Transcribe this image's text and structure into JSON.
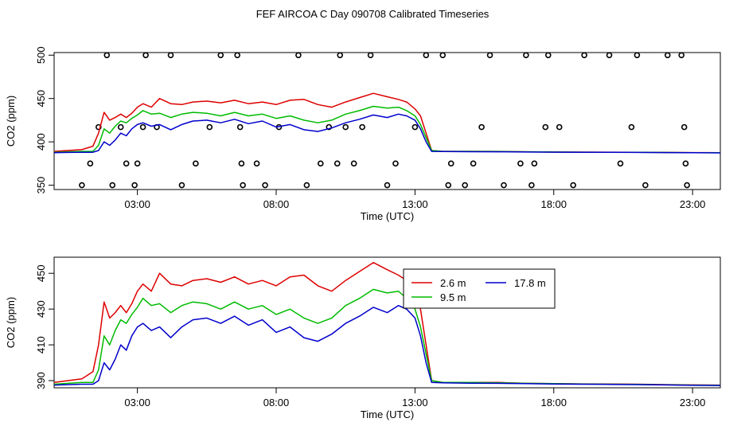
{
  "title": "FEF AIRCOA C  Day 090708  Calibrated Timeseries",
  "colors": {
    "2.6 m": "#dd0000",
    "9.5 m": "#00bb00",
    "17.8 m": "#0000cc",
    "frame": "#000000"
  },
  "chart_data": [
    {
      "type": "line",
      "xlabel": "Time (UTC)",
      "ylabel": "CO2 (ppm)",
      "x_unit": "hours UTC",
      "xlim": [
        0,
        24
      ],
      "ylim": [
        345,
        503
      ],
      "x_ticks": [
        {
          "v": 3,
          "label": "03:00"
        },
        {
          "v": 8,
          "label": "08:00"
        },
        {
          "v": 13,
          "label": "13:00"
        },
        {
          "v": 18,
          "label": "18:00"
        },
        {
          "v": 23,
          "label": "23:00"
        }
      ],
      "y_ticks": [
        {
          "v": 350,
          "label": "350"
        },
        {
          "v": 400,
          "label": "400"
        },
        {
          "v": 450,
          "label": "450"
        },
        {
          "v": 500,
          "label": "500"
        }
      ],
      "series": [
        {
          "name": "2.6 m",
          "color": "#dd0000"
        },
        {
          "name": "9.5 m",
          "color": "#00bb00"
        },
        {
          "name": "17.8 m",
          "color": "#0000cc"
        }
      ],
      "points": [
        [
          1.0,
          350
        ],
        [
          1.3,
          375
        ],
        [
          1.6,
          417
        ],
        [
          1.9,
          500
        ],
        [
          2.1,
          350
        ],
        [
          2.4,
          417
        ],
        [
          2.6,
          375
        ],
        [
          2.9,
          350
        ],
        [
          3.0,
          375
        ],
        [
          3.2,
          417
        ],
        [
          3.3,
          500
        ],
        [
          3.7,
          417
        ],
        [
          4.2,
          500
        ],
        [
          4.6,
          350
        ],
        [
          5.1,
          375
        ],
        [
          5.6,
          417
        ],
        [
          6.0,
          500
        ],
        [
          6.6,
          500
        ],
        [
          6.7,
          417
        ],
        [
          6.75,
          375
        ],
        [
          6.8,
          350
        ],
        [
          7.3,
          375
        ],
        [
          7.6,
          350
        ],
        [
          8.1,
          417
        ],
        [
          8.8,
          500
        ],
        [
          9.1,
          350
        ],
        [
          9.6,
          375
        ],
        [
          9.9,
          417
        ],
        [
          10.2,
          375
        ],
        [
          10.3,
          500
        ],
        [
          10.5,
          417
        ],
        [
          10.8,
          375
        ],
        [
          11.1,
          417
        ],
        [
          11.4,
          500
        ],
        [
          12.0,
          350
        ],
        [
          12.3,
          375
        ],
        [
          13.0,
          417
        ],
        [
          13.4,
          500
        ],
        [
          14.0,
          500
        ],
        [
          14.2,
          350
        ],
        [
          14.3,
          375
        ],
        [
          14.8,
          350
        ],
        [
          15.1,
          375
        ],
        [
          15.4,
          417
        ],
        [
          15.7,
          500
        ],
        [
          16.2,
          350
        ],
        [
          16.8,
          375
        ],
        [
          17.0,
          500
        ],
        [
          17.2,
          350
        ],
        [
          17.3,
          375
        ],
        [
          17.7,
          417
        ],
        [
          17.8,
          500
        ],
        [
          18.2,
          417
        ],
        [
          18.7,
          350
        ],
        [
          19.1,
          500
        ],
        [
          20.0,
          500
        ],
        [
          20.4,
          375
        ],
        [
          20.8,
          417
        ],
        [
          21.0,
          500
        ],
        [
          21.3,
          350
        ],
        [
          22.1,
          500
        ],
        [
          22.6,
          500
        ],
        [
          22.7,
          417
        ],
        [
          22.75,
          375
        ],
        [
          22.8,
          350
        ]
      ]
    },
    {
      "type": "line",
      "xlabel": "Time (UTC)",
      "ylabel": "CO2 (ppm)",
      "x_unit": "hours UTC",
      "xlim": [
        0,
        24
      ],
      "ylim": [
        386,
        459
      ],
      "x_ticks": [
        {
          "v": 3,
          "label": "03:00"
        },
        {
          "v": 8,
          "label": "08:00"
        },
        {
          "v": 13,
          "label": "13:00"
        },
        {
          "v": 18,
          "label": "18:00"
        },
        {
          "v": 23,
          "label": "23:00"
        }
      ],
      "y_ticks": [
        {
          "v": 390,
          "label": "390"
        },
        {
          "v": 410,
          "label": "410"
        },
        {
          "v": 430,
          "label": "430"
        },
        {
          "v": 450,
          "label": "450"
        }
      ],
      "legend": {
        "position": "top-center",
        "entries": [
          "2.6 m",
          "9.5 m",
          "17.8 m"
        ]
      },
      "series": [
        {
          "name": "2.6 m",
          "color": "#dd0000",
          "x": [
            0.0,
            0.5,
            1.0,
            1.4,
            1.6,
            1.8,
            2.0,
            2.2,
            2.4,
            2.6,
            2.8,
            3.0,
            3.2,
            3.5,
            3.8,
            4.2,
            4.6,
            5.0,
            5.5,
            6.0,
            6.5,
            7.0,
            7.5,
            8.0,
            8.5,
            9.0,
            9.5,
            10.0,
            10.5,
            11.0,
            11.5,
            12.0,
            12.4,
            12.7,
            13.0,
            13.2,
            13.4,
            13.6,
            14.0,
            15.0,
            16.0,
            17.0,
            18.0,
            19.0,
            20.0,
            21.0,
            22.0,
            23.0,
            24.0
          ],
          "y": [
            389,
            390,
            391,
            395,
            410,
            434,
            425,
            428,
            432,
            428,
            433,
            440,
            444,
            440,
            450,
            444,
            443,
            446,
            447,
            445,
            448,
            444,
            446,
            443,
            448,
            449,
            443,
            440,
            446,
            451,
            456,
            452,
            449,
            446,
            438,
            430,
            410,
            390,
            389,
            389,
            389,
            388.5,
            388.3,
            388.2,
            388.1,
            388,
            387.8,
            387.6,
            387.5
          ]
        },
        {
          "name": "9.5 m",
          "color": "#00bb00",
          "x": [
            0.0,
            0.5,
            1.0,
            1.4,
            1.6,
            1.8,
            2.0,
            2.2,
            2.4,
            2.6,
            2.8,
            3.0,
            3.2,
            3.5,
            3.8,
            4.2,
            4.6,
            5.0,
            5.5,
            6.0,
            6.5,
            7.0,
            7.5,
            8.0,
            8.5,
            9.0,
            9.5,
            10.0,
            10.5,
            11.0,
            11.5,
            12.0,
            12.4,
            12.7,
            13.0,
            13.2,
            13.4,
            13.6,
            14.0,
            15.0,
            16.0,
            17.0,
            18.0,
            19.0,
            20.0,
            21.0,
            22.0,
            23.0,
            24.0
          ],
          "y": [
            388,
            388.5,
            389,
            389,
            396,
            415,
            410,
            418,
            424,
            422,
            427,
            431,
            436,
            432,
            433,
            428,
            432,
            434,
            433,
            430,
            434,
            430,
            432,
            427,
            430,
            425,
            422,
            425,
            432,
            436,
            441,
            439,
            440,
            436,
            430,
            420,
            405,
            390,
            389,
            389,
            388.8,
            388.5,
            388.3,
            388.1,
            388,
            387.9,
            387.7,
            387.5,
            387.4
          ]
        },
        {
          "name": "17.8 m",
          "color": "#0000cc",
          "x": [
            0.0,
            0.5,
            1.0,
            1.4,
            1.6,
            1.8,
            2.0,
            2.2,
            2.4,
            2.6,
            2.8,
            3.0,
            3.2,
            3.5,
            3.8,
            4.2,
            4.6,
            5.0,
            5.5,
            6.0,
            6.5,
            7.0,
            7.5,
            8.0,
            8.5,
            9.0,
            9.5,
            10.0,
            10.5,
            11.0,
            11.5,
            12.0,
            12.4,
            12.7,
            13.0,
            13.2,
            13.4,
            13.6,
            14.0,
            15.0,
            16.0,
            17.0,
            18.0,
            19.0,
            20.0,
            21.0,
            22.0,
            23.0,
            24.0
          ],
          "y": [
            387.5,
            387.8,
            388,
            388,
            390,
            400,
            396,
            402,
            410,
            407,
            415,
            420,
            422,
            418,
            420,
            414,
            420,
            424,
            425,
            422,
            426,
            421,
            424,
            417,
            420,
            414,
            412,
            416,
            422,
            426,
            431,
            428,
            432,
            430,
            425,
            415,
            400,
            389,
            388.8,
            388.6,
            388.5,
            388.3,
            388.1,
            388,
            387.9,
            387.8,
            387.6,
            387.4,
            387.3
          ]
        }
      ]
    }
  ]
}
